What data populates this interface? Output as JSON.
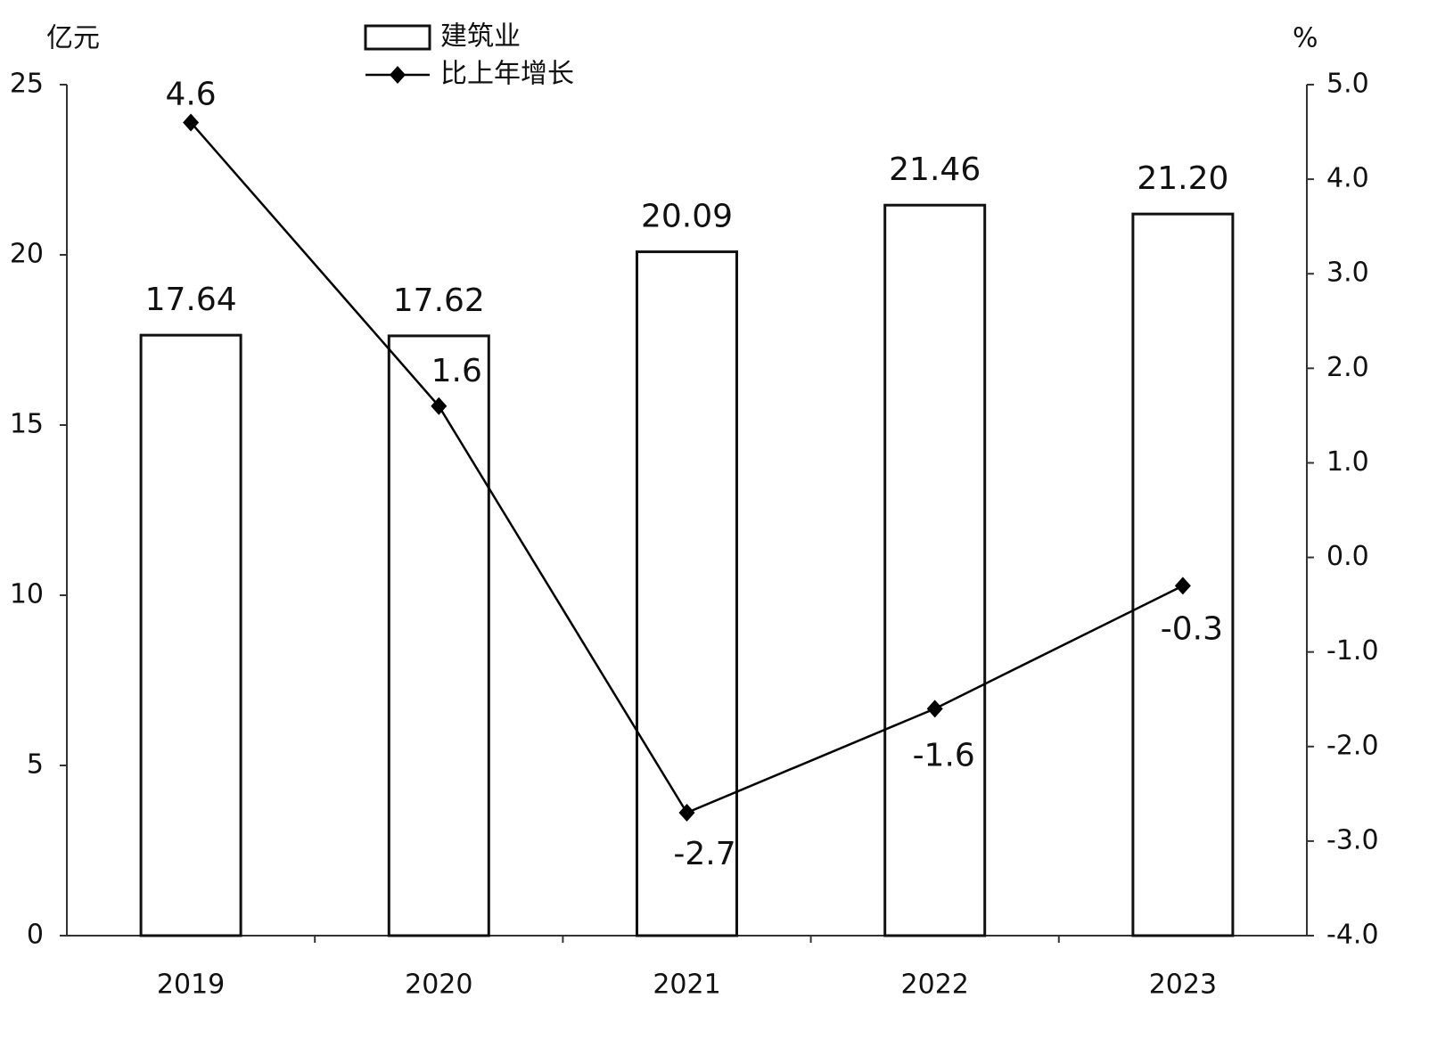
{
  "chart_data": {
    "type": "bar",
    "y_label": "亿元",
    "y2_label": "%",
    "categories": [
      "2019",
      "2020",
      "2021",
      "2022",
      "2023"
    ],
    "series": [
      {
        "name": "建筑业",
        "type": "bar",
        "color": "#ffffff",
        "values": [
          17.64,
          17.62,
          20.09,
          21.46,
          21.2
        ],
        "value_labels": [
          "17.64",
          "17.62",
          "20.09",
          "21.46",
          "21.20"
        ]
      },
      {
        "name": "比上年增长",
        "type": "line",
        "axis": "y2",
        "color": "#000000",
        "values": [
          4.6,
          1.6,
          -2.7,
          -1.6,
          -0.3
        ]
      }
    ],
    "ylim": [
      0,
      25
    ],
    "yticks": [
      0,
      5,
      10,
      15,
      20,
      25
    ],
    "y2lim": [
      -4,
      5
    ],
    "y2ticks": [
      {
        "value": -4,
        "label": "-4.0"
      },
      {
        "value": -3,
        "label": "-3.0"
      },
      {
        "value": -2,
        "label": "-2.0"
      },
      {
        "value": -1,
        "label": "-1.0"
      },
      {
        "value": 0,
        "label": "0.0"
      },
      {
        "value": 1,
        "label": "1.0"
      },
      {
        "value": 2,
        "label": "2.0"
      },
      {
        "value": 3,
        "label": "3.0"
      },
      {
        "value": 4,
        "label": "4.0"
      },
      {
        "value": 5,
        "label": "5.0"
      }
    ]
  }
}
